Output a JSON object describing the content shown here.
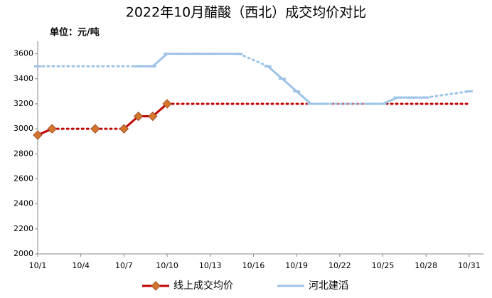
{
  "chart_data": {
    "type": "line",
    "title": "2022年10月醋酸（西北）成交均价对比",
    "y_axis_label": "单位：元/吨",
    "categories": [
      "10/1",
      null,
      null,
      "10/4",
      null,
      null,
      "10/7",
      null,
      null,
      "10/10",
      null,
      null,
      "10/13",
      null,
      null,
      "10/16",
      null,
      null,
      "10/19",
      null,
      null,
      "10/22",
      null,
      null,
      "10/25",
      null,
      null,
      "10/28",
      null,
      null,
      "10/31"
    ],
    "series": [
      {
        "name": "线上成交均价",
        "color": "#c00000",
        "marker": "diamond",
        "marker_color": "#d4762c",
        "values": [
          2950,
          3000,
          null,
          null,
          3000,
          null,
          3000,
          3100,
          3100,
          3200,
          null,
          null,
          null,
          null,
          null,
          null,
          null,
          null,
          null,
          null,
          null,
          null,
          null,
          null,
          null,
          null,
          null,
          null,
          null,
          null,
          null
        ]
      },
      {
        "name": "河北建滔",
        "color": "#9dc3e6",
        "marker": "dash",
        "values": [
          3500,
          null,
          null,
          null,
          null,
          null,
          null,
          3500,
          3500,
          3600,
          3600,
          3600,
          3600,
          3600,
          3600,
          null,
          3500,
          3400,
          3300,
          3200,
          3200,
          null,
          null,
          3200,
          3200,
          3250,
          3250,
          3250,
          null,
          null,
          3300
        ]
      }
    ],
    "ylim": [
      2000,
      3700
    ],
    "yticks": [
      2000,
      2200,
      2400,
      2600,
      2800,
      3000,
      3200,
      3400,
      3600
    ],
    "grid": false,
    "legend": "bottom"
  }
}
